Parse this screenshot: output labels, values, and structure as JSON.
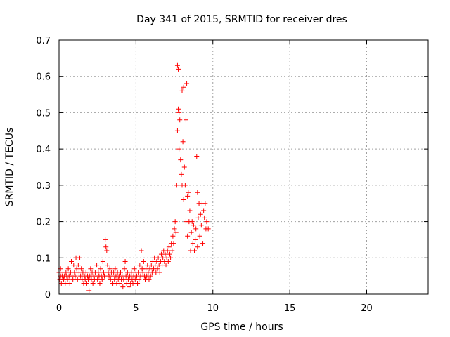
{
  "chart_data": {
    "type": "scatter",
    "title": "Day 341 of 2015, SRMTID for receiver dres",
    "xlabel": "GPS time / hours",
    "ylabel": "SRMTID / TECUs",
    "xlim": [
      0,
      24
    ],
    "ylim": [
      0,
      0.7
    ],
    "x_ticks": [
      0,
      5,
      10,
      15,
      20
    ],
    "y_ticks": [
      0,
      0.1,
      0.2,
      0.3,
      0.4,
      0.5,
      0.6,
      0.7
    ],
    "x_tick_labels": [
      "0",
      "5",
      "10",
      "15",
      "20"
    ],
    "y_tick_labels": [
      "0",
      "0.1",
      "0.2",
      "0.3",
      "0.4",
      "0.5",
      "0.6",
      "0.7"
    ],
    "grid": true,
    "marker": "+",
    "series": [
      {
        "name": "SRMTID",
        "color": "#ff0000",
        "points": [
          [
            0.0,
            0.06
          ],
          [
            0.05,
            0.04
          ],
          [
            0.1,
            0.05
          ],
          [
            0.1,
            0.07
          ],
          [
            0.15,
            0.03
          ],
          [
            0.2,
            0.05
          ],
          [
            0.25,
            0.06
          ],
          [
            0.3,
            0.04
          ],
          [
            0.35,
            0.05
          ],
          [
            0.4,
            0.03
          ],
          [
            0.45,
            0.06
          ],
          [
            0.5,
            0.05
          ],
          [
            0.55,
            0.04
          ],
          [
            0.6,
            0.07
          ],
          [
            0.65,
            0.05
          ],
          [
            0.7,
            0.03
          ],
          [
            0.75,
            0.06
          ],
          [
            0.8,
            0.09
          ],
          [
            0.85,
            0.05
          ],
          [
            0.9,
            0.04
          ],
          [
            0.95,
            0.08
          ],
          [
            1.0,
            0.06
          ],
          [
            1.05,
            0.05
          ],
          [
            1.1,
            0.1
          ],
          [
            1.15,
            0.07
          ],
          [
            1.2,
            0.04
          ],
          [
            1.25,
            0.08
          ],
          [
            1.3,
            0.06
          ],
          [
            1.35,
            0.1
          ],
          [
            1.4,
            0.05
          ],
          [
            1.45,
            0.07
          ],
          [
            1.5,
            0.04
          ],
          [
            1.55,
            0.06
          ],
          [
            1.6,
            0.03
          ],
          [
            1.65,
            0.05
          ],
          [
            1.7,
            0.04
          ],
          [
            1.75,
            0.06
          ],
          [
            1.8,
            0.03
          ],
          [
            1.85,
            0.05
          ],
          [
            1.9,
            0.04
          ],
          [
            1.95,
            0.01
          ],
          [
            2.0,
            0.05
          ],
          [
            2.05,
            0.07
          ],
          [
            2.1,
            0.04
          ],
          [
            2.15,
            0.06
          ],
          [
            2.2,
            0.03
          ],
          [
            2.25,
            0.05
          ],
          [
            2.3,
            0.04
          ],
          [
            2.35,
            0.06
          ],
          [
            2.4,
            0.05
          ],
          [
            2.45,
            0.08
          ],
          [
            2.5,
            0.04
          ],
          [
            2.55,
            0.06
          ],
          [
            2.6,
            0.05
          ],
          [
            2.65,
            0.03
          ],
          [
            2.7,
            0.07
          ],
          [
            2.75,
            0.05
          ],
          [
            2.8,
            0.04
          ],
          [
            2.85,
            0.09
          ],
          [
            2.9,
            0.06
          ],
          [
            2.95,
            0.05
          ],
          [
            3.0,
            0.15
          ],
          [
            3.05,
            0.13
          ],
          [
            3.1,
            0.12
          ],
          [
            3.15,
            0.08
          ],
          [
            3.2,
            0.06
          ],
          [
            3.25,
            0.05
          ],
          [
            3.3,
            0.07
          ],
          [
            3.35,
            0.04
          ],
          [
            3.4,
            0.06
          ],
          [
            3.45,
            0.05
          ],
          [
            3.5,
            0.03
          ],
          [
            3.55,
            0.06
          ],
          [
            3.6,
            0.04
          ],
          [
            3.65,
            0.07
          ],
          [
            3.7,
            0.05
          ],
          [
            3.75,
            0.03
          ],
          [
            3.8,
            0.06
          ],
          [
            3.85,
            0.04
          ],
          [
            3.9,
            0.05
          ],
          [
            3.95,
            0.03
          ],
          [
            4.0,
            0.06
          ],
          [
            4.05,
            0.04
          ],
          [
            4.1,
            0.05
          ],
          [
            4.15,
            0.02
          ],
          [
            4.2,
            0.04
          ],
          [
            4.25,
            0.07
          ],
          [
            4.3,
            0.09
          ],
          [
            4.35,
            0.05
          ],
          [
            4.4,
            0.03
          ],
          [
            4.45,
            0.06
          ],
          [
            4.5,
            0.04
          ],
          [
            4.55,
            0.02
          ],
          [
            4.6,
            0.05
          ],
          [
            4.65,
            0.03
          ],
          [
            4.7,
            0.06
          ],
          [
            4.75,
            0.04
          ],
          [
            4.8,
            0.03
          ],
          [
            4.85,
            0.05
          ],
          [
            4.9,
            0.07
          ],
          [
            4.95,
            0.04
          ],
          [
            5.0,
            0.06
          ],
          [
            5.05,
            0.05
          ],
          [
            5.1,
            0.03
          ],
          [
            5.15,
            0.06
          ],
          [
            5.2,
            0.04
          ],
          [
            5.25,
            0.08
          ],
          [
            5.3,
            0.05
          ],
          [
            5.35,
            0.12
          ],
          [
            5.4,
            0.07
          ],
          [
            5.45,
            0.06
          ],
          [
            5.5,
            0.09
          ],
          [
            5.55,
            0.05
          ],
          [
            5.6,
            0.04
          ],
          [
            5.65,
            0.07
          ],
          [
            5.7,
            0.05
          ],
          [
            5.75,
            0.08
          ],
          [
            5.8,
            0.06
          ],
          [
            5.85,
            0.04
          ],
          [
            5.9,
            0.07
          ],
          [
            5.95,
            0.05
          ],
          [
            6.0,
            0.08
          ],
          [
            6.05,
            0.06
          ],
          [
            6.1,
            0.09
          ],
          [
            6.15,
            0.07
          ],
          [
            6.2,
            0.1
          ],
          [
            6.25,
            0.08
          ],
          [
            6.3,
            0.06
          ],
          [
            6.35,
            0.09
          ],
          [
            6.4,
            0.07
          ],
          [
            6.45,
            0.1
          ],
          [
            6.5,
            0.08
          ],
          [
            6.55,
            0.06
          ],
          [
            6.6,
            0.09
          ],
          [
            6.65,
            0.11
          ],
          [
            6.7,
            0.08
          ],
          [
            6.75,
            0.1
          ],
          [
            6.8,
            0.12
          ],
          [
            6.85,
            0.09
          ],
          [
            6.9,
            0.11
          ],
          [
            6.95,
            0.08
          ],
          [
            7.0,
            0.1
          ],
          [
            7.05,
            0.12
          ],
          [
            7.1,
            0.09
          ],
          [
            7.15,
            0.13
          ],
          [
            7.2,
            0.11
          ],
          [
            7.25,
            0.1
          ],
          [
            7.3,
            0.14
          ],
          [
            7.35,
            0.12
          ],
          [
            7.4,
            0.16
          ],
          [
            7.45,
            0.14
          ],
          [
            7.5,
            0.18
          ],
          [
            7.55,
            0.2
          ],
          [
            7.6,
            0.17
          ],
          [
            7.65,
            0.3
          ],
          [
            7.7,
            0.45
          ],
          [
            7.7,
            0.63
          ],
          [
            7.75,
            0.62
          ],
          [
            7.75,
            0.51
          ],
          [
            7.8,
            0.5
          ],
          [
            7.8,
            0.4
          ],
          [
            7.85,
            0.48
          ],
          [
            7.9,
            0.37
          ],
          [
            7.95,
            0.33
          ],
          [
            8.0,
            0.56
          ],
          [
            8.0,
            0.3
          ],
          [
            8.05,
            0.42
          ],
          [
            8.1,
            0.57
          ],
          [
            8.1,
            0.26
          ],
          [
            8.15,
            0.35
          ],
          [
            8.2,
            0.3
          ],
          [
            8.25,
            0.48
          ],
          [
            8.25,
            0.2
          ],
          [
            8.3,
            0.58
          ],
          [
            8.35,
            0.27
          ],
          [
            8.35,
            0.16
          ],
          [
            8.4,
            0.28
          ],
          [
            8.45,
            0.2
          ],
          [
            8.5,
            0.23
          ],
          [
            8.55,
            0.12
          ],
          [
            8.6,
            0.17
          ],
          [
            8.65,
            0.2
          ],
          [
            8.7,
            0.14
          ],
          [
            8.75,
            0.19
          ],
          [
            8.8,
            0.12
          ],
          [
            8.85,
            0.15
          ],
          [
            8.9,
            0.18
          ],
          [
            8.95,
            0.38
          ],
          [
            9.0,
            0.28
          ],
          [
            9.0,
            0.13
          ],
          [
            9.05,
            0.21
          ],
          [
            9.1,
            0.25
          ],
          [
            9.15,
            0.16
          ],
          [
            9.2,
            0.22
          ],
          [
            9.25,
            0.19
          ],
          [
            9.3,
            0.25
          ],
          [
            9.35,
            0.14
          ],
          [
            9.4,
            0.23
          ],
          [
            9.45,
            0.21
          ],
          [
            9.5,
            0.25
          ],
          [
            9.55,
            0.18
          ],
          [
            9.6,
            0.2
          ],
          [
            9.7,
            0.18
          ]
        ]
      }
    ]
  }
}
